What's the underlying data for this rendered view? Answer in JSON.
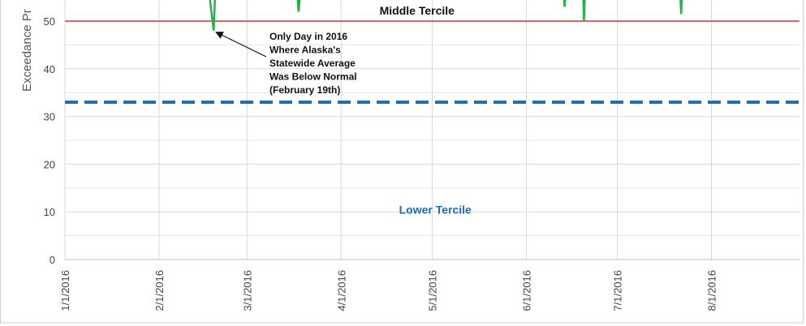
{
  "chart_data": {
    "type": "line",
    "y_label": "Exceedance Pr",
    "xlim": [
      0,
      242
    ],
    "xticks": [
      {
        "value": 0,
        "label": "1/1/2016"
      },
      {
        "value": 31,
        "label": "2/1/2016"
      },
      {
        "value": 60,
        "label": "3/1/2016"
      },
      {
        "value": 91,
        "label": "4/1/2016"
      },
      {
        "value": 121,
        "label": "5/1/2016"
      },
      {
        "value": 152,
        "label": "6/1/2016"
      },
      {
        "value": 182,
        "label": "7/1/2016"
      },
      {
        "value": 213,
        "label": "8/1/2016"
      }
    ],
    "ylim": [
      0,
      54
    ],
    "yticks": [
      0,
      10,
      20,
      30,
      40,
      50
    ],
    "y_minor_gridlines": [
      5,
      15,
      25,
      35,
      45
    ],
    "grid": true,
    "series": [
      {
        "color": "#e06666",
        "style": "solid",
        "x": [
          0,
          242
        ],
        "values": [
          50,
          50
        ]
      },
      {
        "color": "#1f6db5",
        "style": "dashed",
        "x": [
          0,
          242
        ],
        "values": [
          33,
          33
        ]
      },
      {
        "color": "#22b14c",
        "style": "solid",
        "x": [
          47.5,
          49,
          49.5,
          76.5,
          77,
          77.5,
          164.3,
          164.6,
          164.9,
          170.7,
          171,
          171.3,
          202.7,
          203,
          203.3
        ],
        "values": [
          56,
          48,
          56,
          56,
          52,
          56,
          56,
          53,
          56,
          56,
          50,
          56,
          56,
          51.5,
          56
        ]
      }
    ],
    "annotations": [
      {
        "text": "Middle Tercile",
        "x": 116,
        "y": 52.2,
        "color": "#111"
      },
      {
        "text": "Lower Tercile",
        "x": 122,
        "y": 10.5,
        "color": "#1f6db5"
      }
    ],
    "callout": {
      "lines": [
        "Only Day in 2016",
        "Where Alaska's",
        "Statewide Average",
        "Was Below Normal",
        "(February 19th)"
      ],
      "x": 49,
      "y": 48
    }
  }
}
